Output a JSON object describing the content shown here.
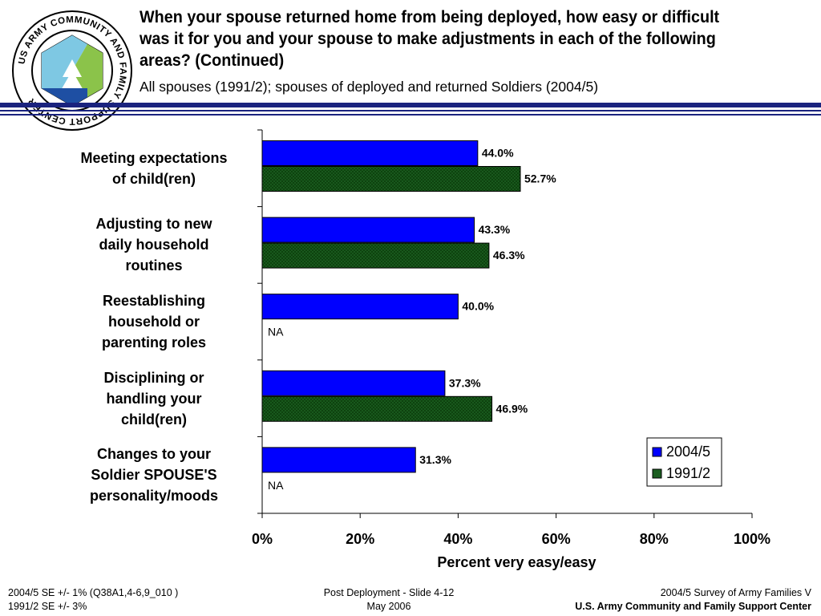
{
  "title": "When your spouse returned home from being deployed, how easy or difficult was it for you and your spouse to make adjustments in each of the following areas? (Continued)",
  "subtitle": "All spouses (1991/2); spouses of deployed and returned Soldiers (2004/5)",
  "logo": {
    "ring_text": "US ARMY COMMUNITY AND FAMILY SUPPORT CENTER"
  },
  "colors": {
    "series_2004": "#0000ff",
    "series_1991": "#1b5e20",
    "rule": "#1a237e"
  },
  "chart_data": {
    "type": "bar",
    "orientation": "horizontal",
    "categories": [
      [
        "Meeting expectations",
        "of child(ren)"
      ],
      [
        "Adjusting to new",
        "daily household",
        "routines"
      ],
      [
        "Reestablishing",
        "household or",
        "parenting roles"
      ],
      [
        "Disciplining or",
        "handling your",
        "child(ren)"
      ],
      [
        "Changes to your",
        "Soldier SPOUSE'S",
        "personality/moods"
      ]
    ],
    "series": [
      {
        "name": "2004/5",
        "values": [
          44.0,
          43.3,
          40.0,
          37.3,
          31.3
        ],
        "labels": [
          "44.0%",
          "43.3%",
          "40.0%",
          "37.3%",
          "31.3%"
        ]
      },
      {
        "name": "1991/2",
        "values": [
          52.7,
          46.3,
          null,
          46.9,
          null
        ],
        "labels": [
          "52.7%",
          "46.3%",
          "NA",
          "46.9%",
          "NA"
        ]
      }
    ],
    "xlim": [
      0,
      100
    ],
    "xticks": [
      "0%",
      "20%",
      "40%",
      "60%",
      "80%",
      "100%"
    ],
    "xlabel": "Percent very easy/easy",
    "legend_placement": "bottom-right",
    "grid": false
  },
  "footer": {
    "left": [
      "2004/5 SE +/- 1% (Q38A1,4-6,9_010 )",
      "1991/2 SE +/- 3%"
    ],
    "center": [
      "Post Deployment - Slide 4-12",
      "May 2006"
    ],
    "right": [
      "2004/5 Survey of Army Families V",
      "U.S. Army Community and Family Support Center"
    ]
  }
}
